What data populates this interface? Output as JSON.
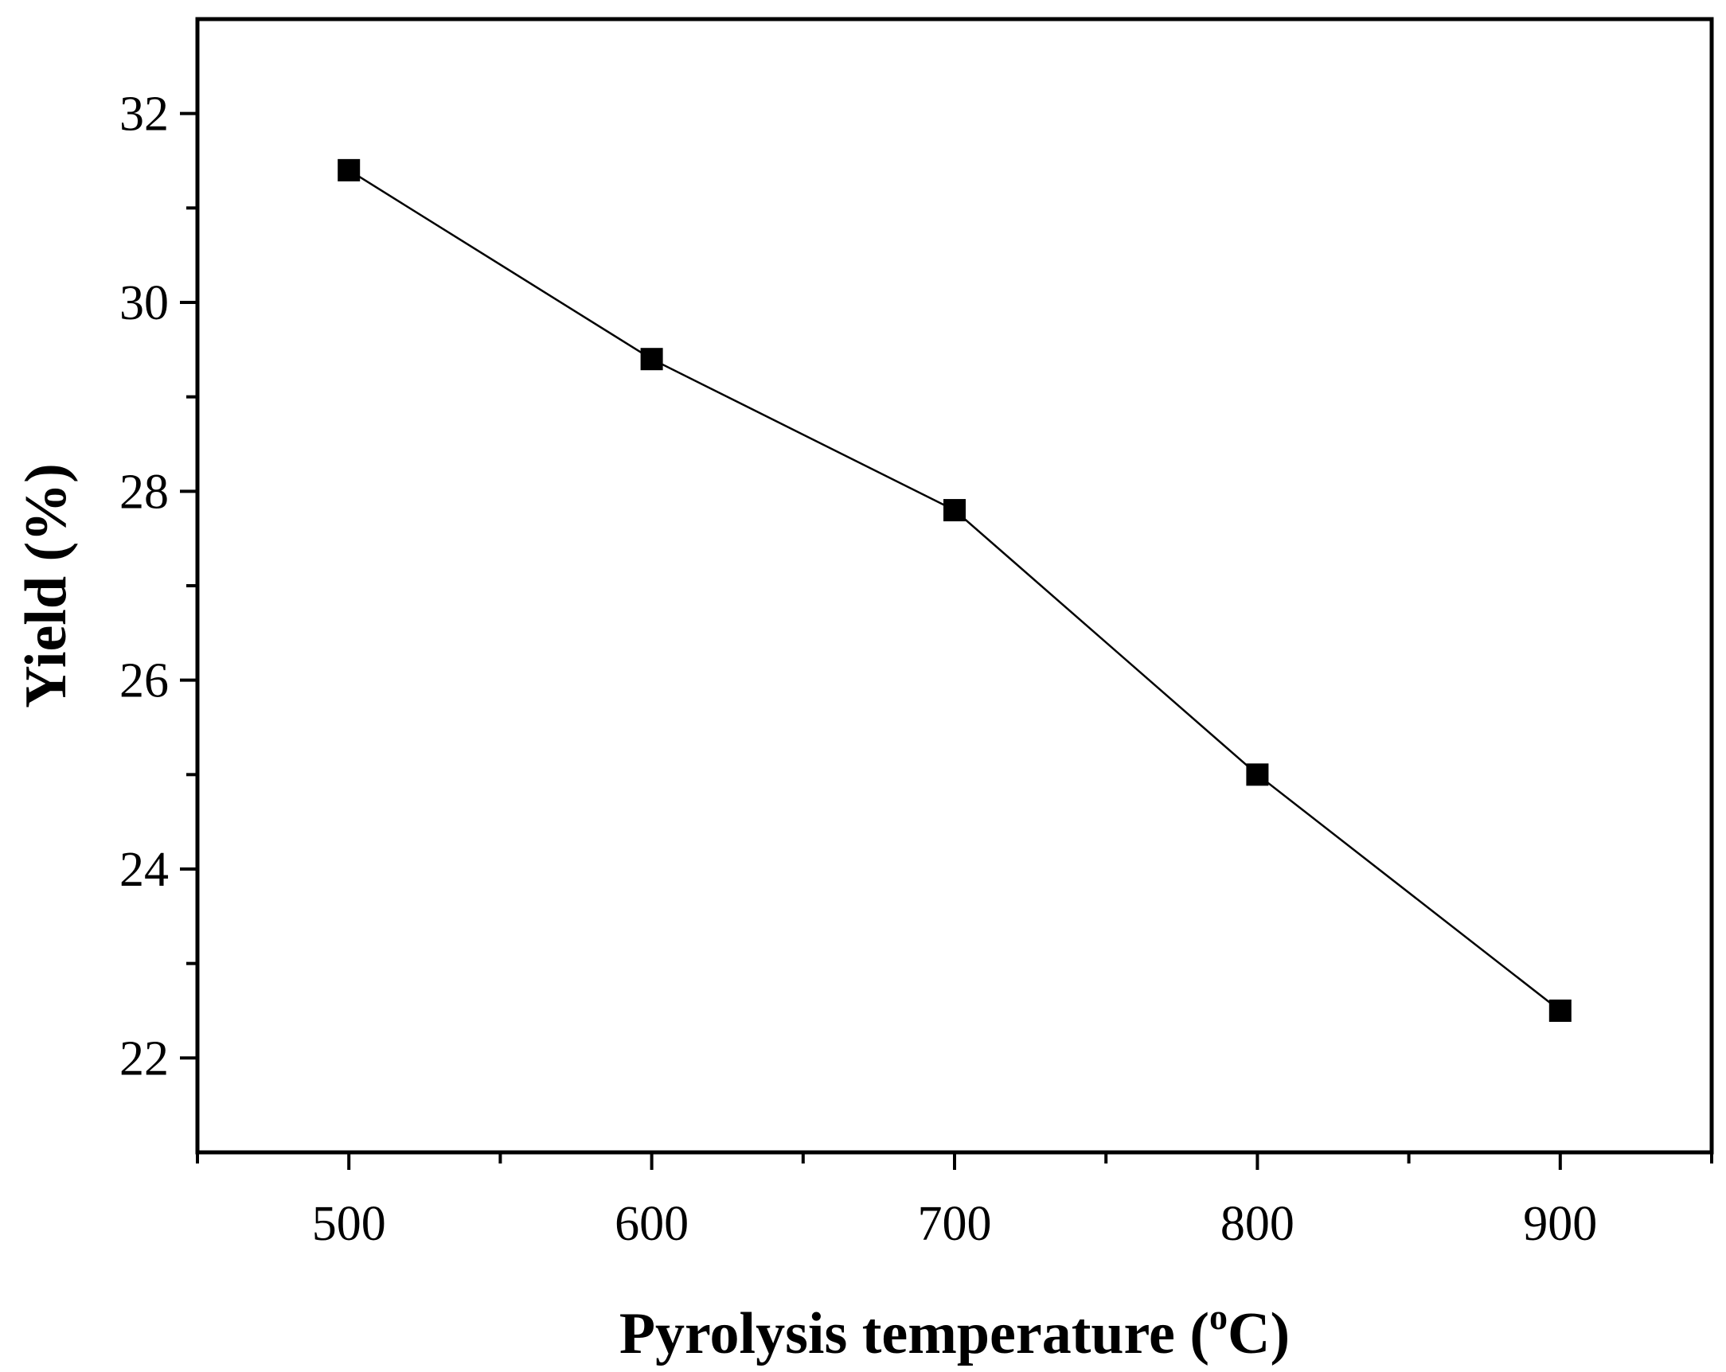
{
  "chart_data": {
    "type": "line",
    "xlabel": "Pyrolysis temperature (",
    "xlabel_sup": "o",
    "xlabel_end": "C)",
    "ylabel": "Yield (%)",
    "x": [
      500,
      600,
      700,
      800,
      900
    ],
    "series": [
      {
        "values": [
          31.4,
          29.4,
          27.8,
          25.0,
          22.5
        ],
        "marker": "square",
        "color": "#000000"
      }
    ],
    "xlim": [
      450,
      950
    ],
    "ylim": [
      21,
      33
    ],
    "x_major_ticks": [
      500,
      600,
      700,
      800,
      900
    ],
    "x_minor_ticks": [
      450,
      550,
      650,
      750,
      850,
      950
    ],
    "y_major_ticks": [
      22,
      24,
      26,
      28,
      30,
      32
    ],
    "y_minor_ticks": [
      23,
      25,
      27,
      29,
      31
    ],
    "x_tick_labels": [
      "500",
      "600",
      "700",
      "800",
      "900"
    ],
    "y_tick_labels": [
      "22",
      "24",
      "26",
      "28",
      "30",
      "32"
    ],
    "grid": false,
    "legend": "none"
  }
}
